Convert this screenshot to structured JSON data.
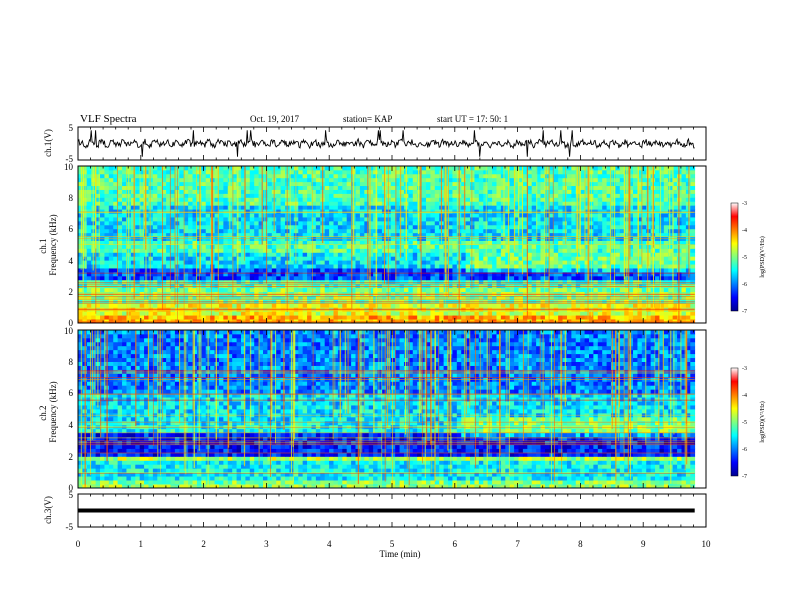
{
  "header": {
    "title": "VLF Spectra",
    "date": "Oct. 19, 2017",
    "station": "station= KAP",
    "start": "start  UT =   17: 50: 1"
  },
  "chart_data": [
    {
      "id": "ch1-waveform",
      "type": "line",
      "ylabel": "ch.1(V)",
      "ylim": [
        -5,
        5
      ],
      "yticks": [
        "5",
        "-5"
      ],
      "xlim": [
        0,
        10
      ],
      "series": [
        {
          "color": "#000000",
          "x_range": [
            0,
            9.82
          ],
          "mean": 0,
          "amplitude_typical": 1.5,
          "amplitude_spikes": 4
        }
      ]
    },
    {
      "id": "ch1-spectrogram",
      "type": "heatmap",
      "ylabel": "ch.1\nFrequency (kHz)",
      "ylim": [
        0,
        10
      ],
      "yticks": [
        "0",
        "2",
        "4",
        "6",
        "8",
        "10"
      ],
      "xlim": [
        0,
        10
      ],
      "x_data_range": [
        0,
        9.82
      ],
      "colorbar": {
        "label": "log(PSD)(V²/Hz)",
        "range": [
          -7,
          -3
        ],
        "ticks": [
          "-3",
          "-4",
          "-5",
          "-6",
          "-7"
        ]
      },
      "bands": [
        {
          "f_low": 0.0,
          "f_high": 0.4,
          "value": -4.2
        },
        {
          "f_low": 0.4,
          "f_high": 1.3,
          "value": -4.6
        },
        {
          "f_low": 1.3,
          "f_high": 2.3,
          "value": -5.0
        },
        {
          "f_low": 2.3,
          "f_high": 2.8,
          "value": -5.3
        },
        {
          "f_low": 2.8,
          "f_high": 3.4,
          "value": -6.2
        },
        {
          "f_low": 3.4,
          "f_high": 4.6,
          "value": -5.6
        },
        {
          "f_low": 4.6,
          "f_high": 5.3,
          "value": -5.2
        },
        {
          "f_low": 5.3,
          "f_high": 7.5,
          "value": -5.6
        },
        {
          "f_low": 7.5,
          "f_high": 10.0,
          "value": -5.2
        }
      ]
    },
    {
      "id": "ch2-spectrogram",
      "type": "heatmap",
      "ylabel": "ch.2\nFrequency (kHz)",
      "ylim": [
        0,
        10
      ],
      "yticks": [
        "0",
        "2",
        "4",
        "6",
        "8",
        "10"
      ],
      "xlim": [
        0,
        10
      ],
      "x_data_range": [
        0,
        9.82
      ],
      "colorbar": {
        "label": "log(PSD)(V²/Hz)",
        "range": [
          -7,
          -3
        ],
        "ticks": [
          "-3",
          "-4",
          "-5",
          "-6",
          "-7"
        ]
      },
      "bands": [
        {
          "f_low": 0.0,
          "f_high": 0.5,
          "value": -5.0
        },
        {
          "f_low": 0.5,
          "f_high": 1.8,
          "value": -5.5
        },
        {
          "f_low": 1.8,
          "f_high": 2.0,
          "value": -4.8
        },
        {
          "f_low": 2.0,
          "f_high": 3.6,
          "value": -6.4
        },
        {
          "f_low": 3.6,
          "f_high": 4.2,
          "value": -5.5
        },
        {
          "f_low": 4.2,
          "f_high": 6.0,
          "value": -5.6
        },
        {
          "f_low": 6.0,
          "f_high": 10.0,
          "value": -6.0
        }
      ]
    },
    {
      "id": "ch3-waveform",
      "type": "line",
      "ylabel": "ch.3(V)",
      "ylim": [
        -5,
        5
      ],
      "yticks": [
        "5",
        "-5"
      ],
      "xlim": [
        0,
        10
      ],
      "series": [
        {
          "color": "#000000",
          "x_range": [
            0,
            9.82
          ],
          "value": 0
        }
      ]
    }
  ],
  "x_axis": {
    "label": "Time (min)",
    "ticks": [
      "0",
      "1",
      "2",
      "3",
      "4",
      "5",
      "6",
      "7",
      "8",
      "9",
      "10"
    ]
  }
}
